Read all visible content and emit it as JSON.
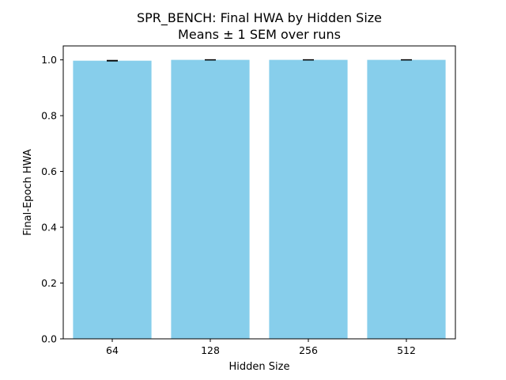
{
  "chart_data": {
    "type": "bar",
    "title": "SPR_BENCH: Final HWA by Hidden Size",
    "subtitle": "Means ± 1 SEM over runs",
    "xlabel": "Hidden Size",
    "ylabel": "Final-Epoch HWA",
    "categories": [
      "64",
      "128",
      "256",
      "512"
    ],
    "values": [
      0.997,
      1.0,
      1.0,
      1.0
    ],
    "errors": [
      0.001,
      0.0005,
      0.0005,
      0.0005
    ],
    "ylim": [
      0,
      1.05
    ],
    "yticks": [
      "0.0",
      "0.2",
      "0.4",
      "0.6",
      "0.8",
      "1.0"
    ],
    "grid": false,
    "bar_color": "#87ceeb",
    "error_color": "#000000"
  }
}
